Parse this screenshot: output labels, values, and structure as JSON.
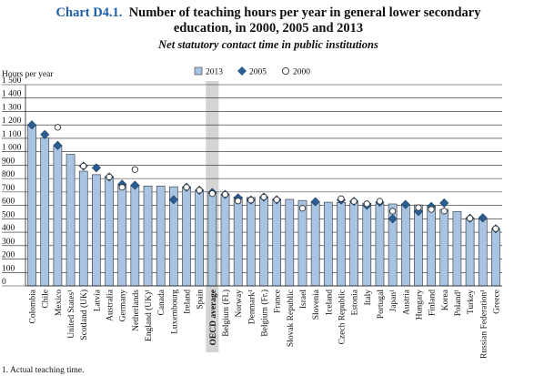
{
  "chart_data": {
    "type": "bar",
    "chart_number": "Chart D4.1.",
    "title": "Number of teaching hours per year in general lower secondary education, in 2000, 2005 and 2013",
    "subtitle": "Net statutory contact time in public institutions",
    "y_label": "Hours per year",
    "footnote": "1. Actual teaching time.",
    "categories": [
      "Colombia",
      "Chile",
      "Mexico",
      "United States¹",
      "Scotland (UK)",
      "Latvia",
      "Australia",
      "Germany",
      "Netherlands",
      "England (UK)¹",
      "Canada",
      "Luxembourg",
      "Ireland",
      "Spain",
      "OECD average",
      "Belgium (Fl.)",
      "Norway",
      "Denmark¹",
      "Belgium (Fr.)",
      "France",
      "Slovak Republic",
      "Israel",
      "Slovenia",
      "Iceland",
      "Czech Republic",
      "Estonia",
      "Italy",
      "Portugal",
      "Japan¹",
      "Austria",
      "Hungary",
      "Finland",
      "Korea",
      "Poland¹",
      "Turkey",
      "Russian Federation¹",
      "Greece"
    ],
    "highlight_category_index": 14,
    "series": [
      {
        "name": "2013",
        "mark": "bar",
        "color": "#a8c4e2",
        "values": [
          1200,
          1103,
          1047,
          981,
          855,
          829,
          812,
          750,
          750,
          745,
          744,
          739,
          735,
          713,
          694,
          682,
          663,
          659,
          657,
          648,
          645,
          637,
          627,
          624,
          622,
          619,
          616,
          611,
          611,
          607,
          604,
          592,
          570,
          555,
          504,
          496,
          415
        ]
      },
      {
        "name": "2005",
        "mark": "diamond",
        "color": "#2b5d90",
        "values": [
          1200,
          1128,
          1047,
          null,
          893,
          880,
          812,
          758,
          750,
          null,
          null,
          642,
          735,
          713,
          696,
          682,
          656,
          640,
          662,
          642,
          null,
          null,
          627,
          null,
          640,
          630,
          601,
          623,
          500,
          607,
          555,
          592,
          618,
          null,
          504,
          507,
          426
        ]
      },
      {
        "name": "2000",
        "mark": "circle",
        "color": "#ffffff",
        "values": [
          null,
          null,
          1182,
          null,
          893,
          null,
          812,
          735,
          867,
          null,
          null,
          null,
          735,
          713,
          688,
          682,
          633,
          640,
          662,
          642,
          null,
          579,
          null,
          null,
          650,
          630,
          612,
          631,
          557,
          null,
          583,
          570,
          558,
          null,
          504,
          null,
          426
        ]
      }
    ],
    "ylim": [
      0,
      1500
    ],
    "yticks": [
      0,
      100,
      200,
      300,
      400,
      500,
      600,
      700,
      800,
      900,
      {
        "value": 1000,
        "label": "1 000"
      },
      {
        "value": 1100,
        "label": "1 100"
      },
      {
        "value": 1200,
        "label": "1 200"
      },
      {
        "value": 1300,
        "label": "1 300"
      },
      {
        "value": 1400,
        "label": "1 400"
      },
      {
        "value": 1500,
        "label": "1 500"
      }
    ],
    "grid": true
  }
}
